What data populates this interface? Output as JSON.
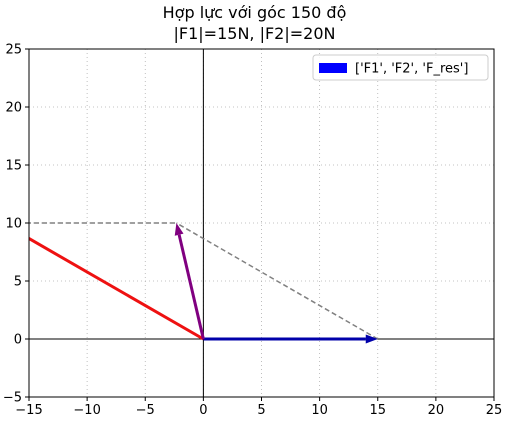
{
  "chart_data": {
    "type": "line",
    "title_lines": [
      "Hợp lực với góc 150 độ",
      "|F1|=15N, |F2|=20N"
    ],
    "xlim": [
      -15,
      25
    ],
    "ylim": [
      -5,
      25
    ],
    "xticks": [
      -15,
      -10,
      -5,
      0,
      5,
      10,
      15,
      20,
      25
    ],
    "yticks": [
      -5,
      0,
      5,
      10,
      15,
      20,
      25
    ],
    "grid": true,
    "legend": {
      "placement": "top-right",
      "label": "['F1', 'F2', 'F_res']",
      "color": "#0000ff"
    },
    "vectors": [
      {
        "id": "F1",
        "x0": 0,
        "y0": 0,
        "x1": 15,
        "y1": 0,
        "color": "#0000aa",
        "arrow": true
      },
      {
        "id": "F2",
        "x0": 0,
        "y0": 0,
        "x1": -17.32,
        "y1": 10,
        "color": "#ee1111",
        "arrow": false
      },
      {
        "id": "F_res",
        "x0": 0,
        "y0": 0,
        "x1": -2.32,
        "y1": 10,
        "color": "#800080",
        "arrow": true
      }
    ],
    "dashed_lines": [
      {
        "x": [
          15,
          -2.32
        ],
        "y": [
          0,
          10
        ],
        "color": "#808080"
      },
      {
        "x": [
          -17.32,
          -2.32
        ],
        "y": [
          10,
          10
        ],
        "color": "#808080"
      }
    ],
    "axis_lines": [
      {
        "orientation": "horizontal",
        "value": 0
      },
      {
        "orientation": "vertical",
        "value": 0
      }
    ]
  }
}
